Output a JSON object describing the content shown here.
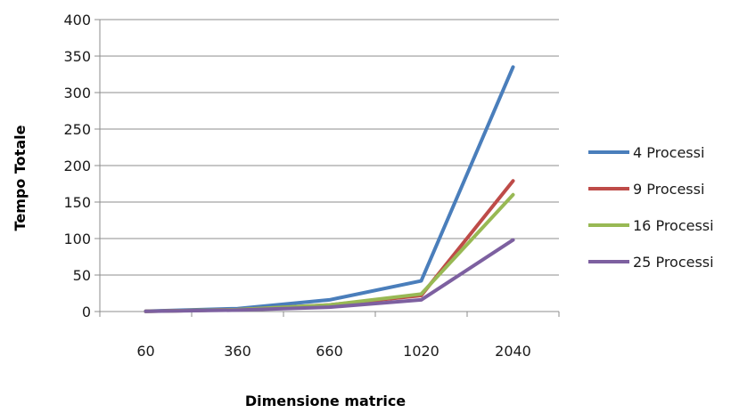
{
  "chart_data": {
    "type": "line",
    "title": "",
    "xlabel": "Dimensione matrice",
    "ylabel": "Tempo Totale",
    "categories": [
      "60",
      "360",
      "660",
      "1020",
      "2040"
    ],
    "ylim": [
      0,
      400
    ],
    "yticks": [
      0,
      50,
      100,
      150,
      200,
      250,
      300,
      350,
      400
    ],
    "grid": true,
    "legend_position": "right",
    "series": [
      {
        "name": "4 Processi",
        "color": "#4a7ebb",
        "values": [
          0.5,
          4,
          16,
          42,
          335
        ]
      },
      {
        "name": "9 Processi",
        "color": "#be4b48",
        "values": [
          0.3,
          2.5,
          9,
          22,
          179
        ]
      },
      {
        "name": "16 Processi",
        "color": "#98b954",
        "values": [
          0.3,
          2.5,
          9,
          24,
          160
        ]
      },
      {
        "name": "25 Processi",
        "color": "#7d60a0",
        "values": [
          0.2,
          2,
          6,
          16,
          98
        ]
      }
    ]
  }
}
